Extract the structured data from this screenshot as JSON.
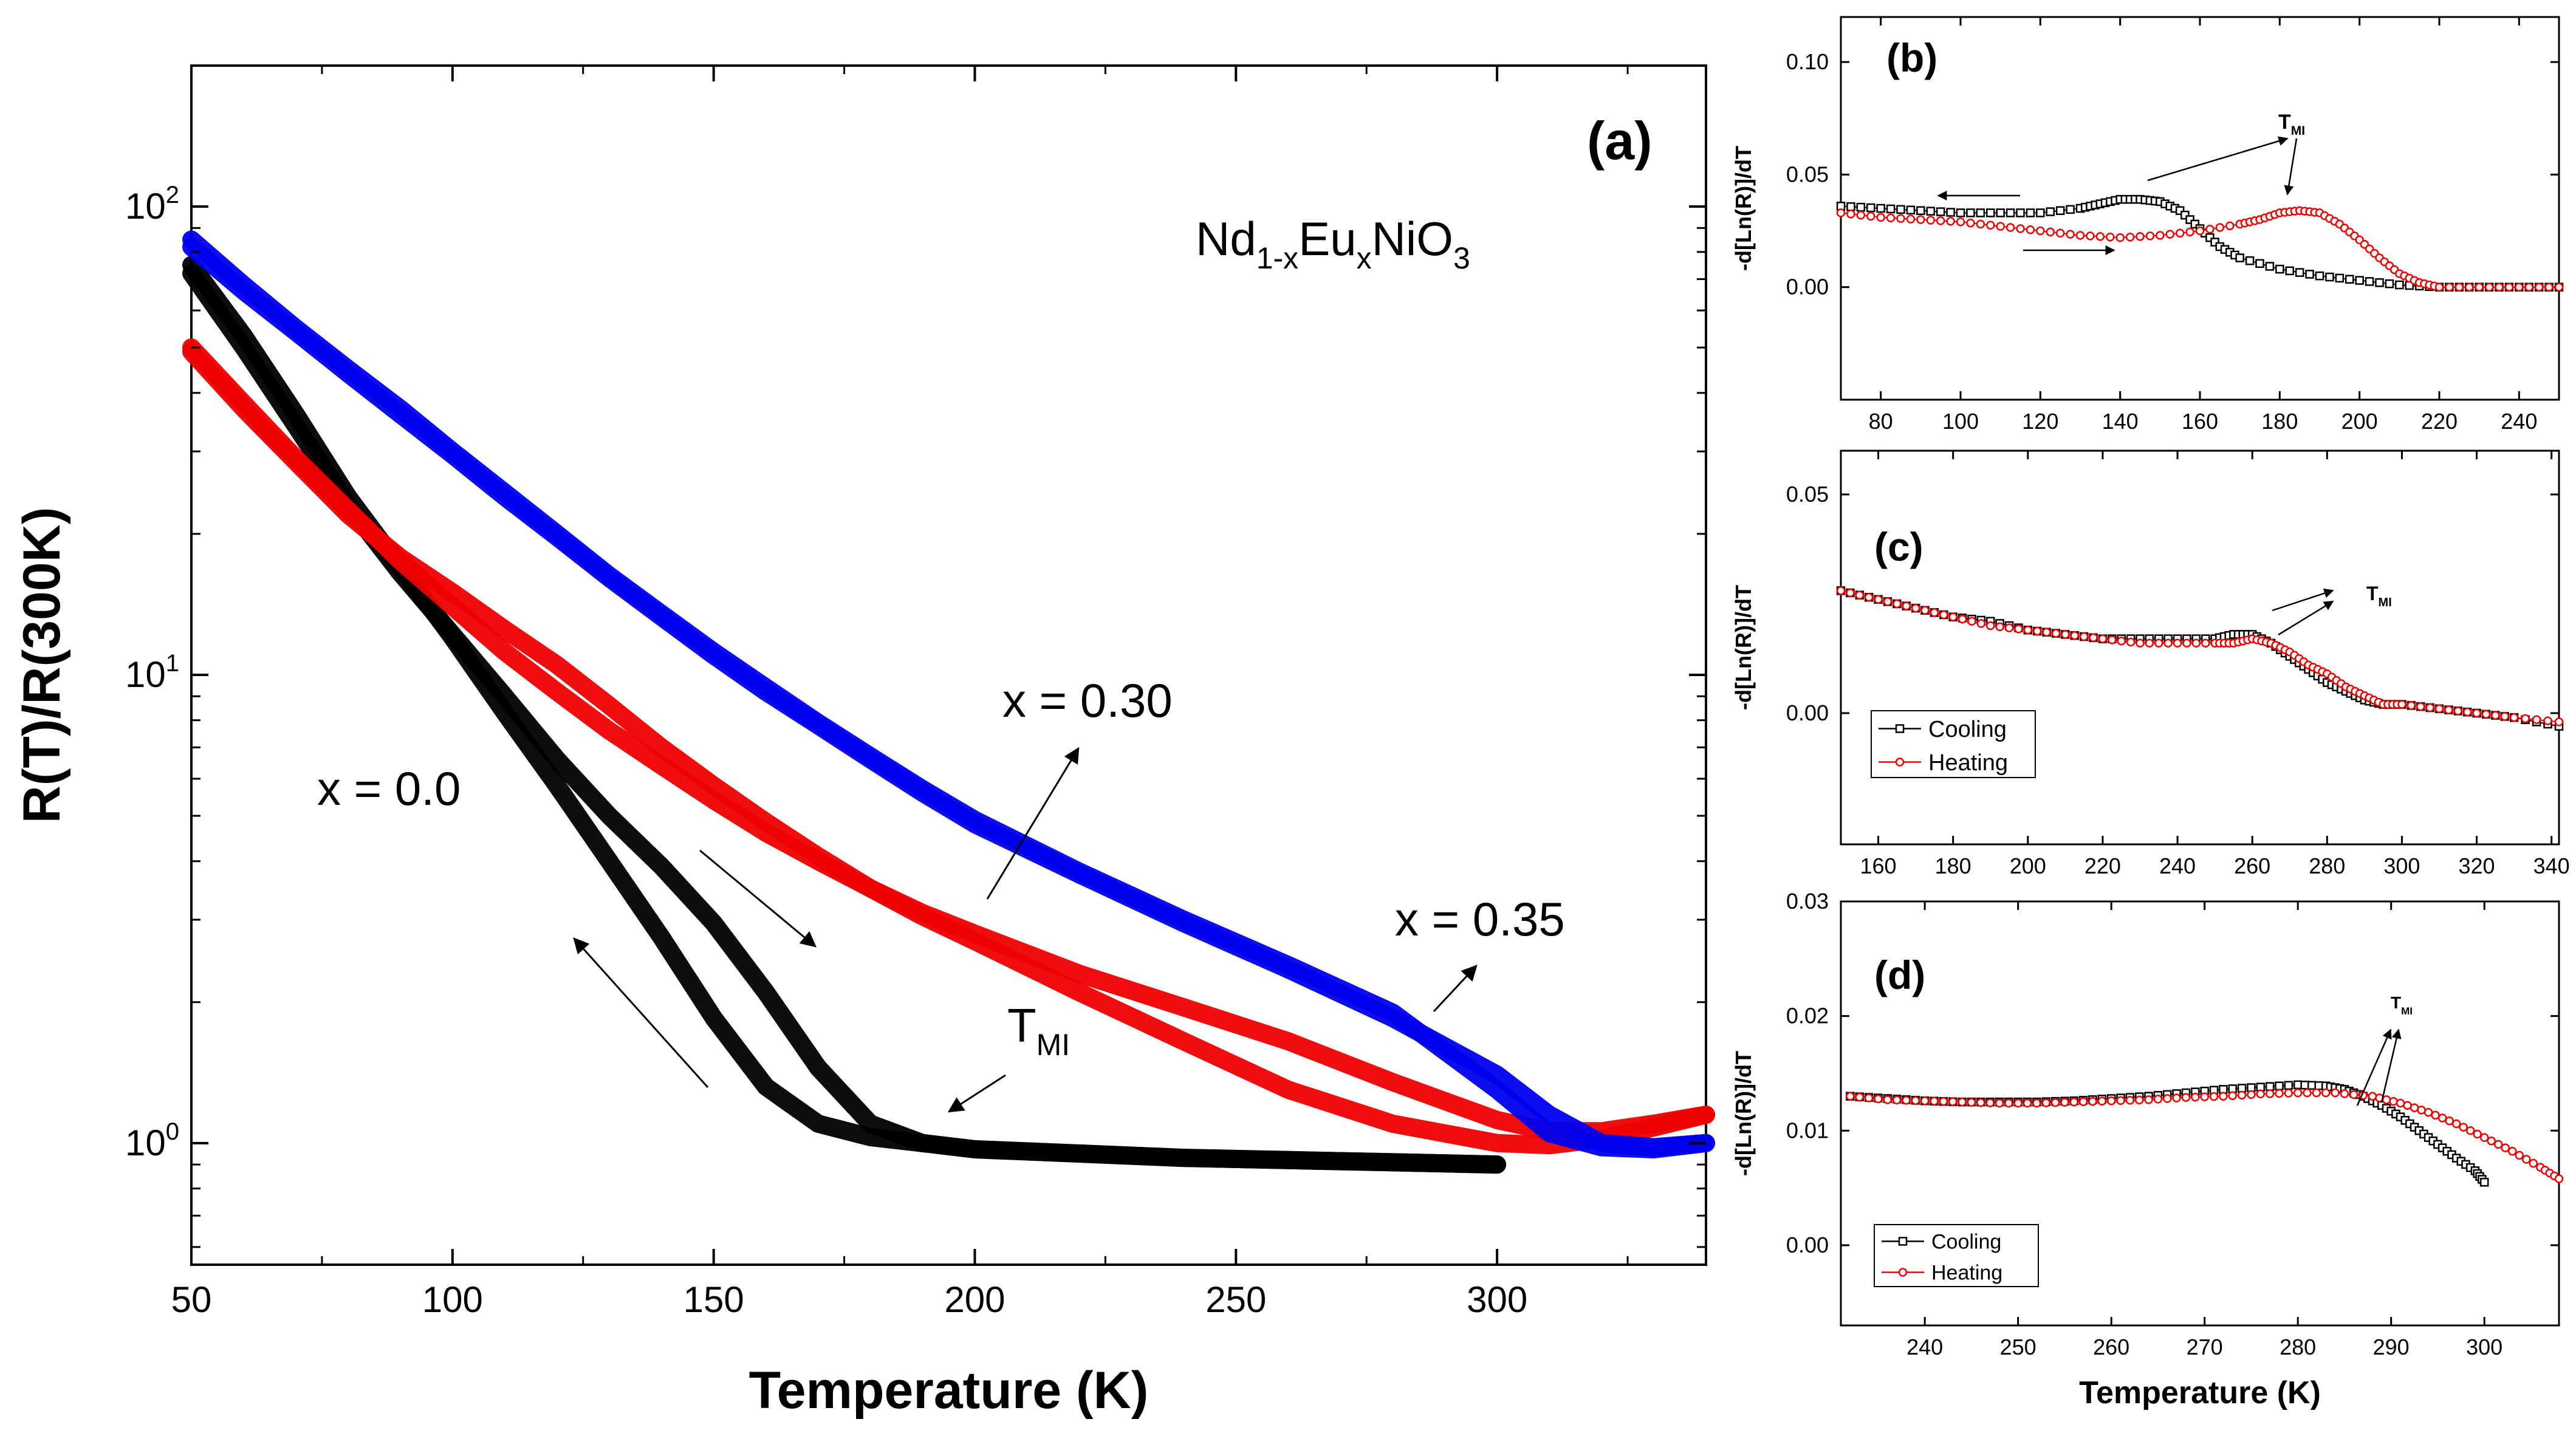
{
  "chart_data": [
    {
      "id": "a",
      "type": "line",
      "panel_label": "(a)",
      "title": "",
      "xlabel": "Temperature (K)",
      "ylabel": "R(T)/R(300K)",
      "y_scale": "log",
      "xlim": [
        50,
        340
      ],
      "ylim": [
        0.55,
        200
      ],
      "x_ticks": [
        50,
        100,
        150,
        200,
        250,
        300
      ],
      "y_ticks": [
        {
          "value": 1,
          "base": "10",
          "exp": "0"
        },
        {
          "value": 10,
          "base": "10",
          "exp": "1"
        },
        {
          "value": 100,
          "base": "10",
          "exp": "2"
        }
      ],
      "compound": {
        "parts": [
          [
            "Nd",
            ""
          ],
          [
            "1-x",
            "sub"
          ],
          [
            "Eu",
            ""
          ],
          [
            "x",
            "sub"
          ],
          [
            "NiO",
            ""
          ],
          [
            "3",
            "sub"
          ]
        ]
      },
      "annotations": {
        "x0": "x = 0.0",
        "x30": "x = 0.30",
        "x35": "x = 0.35",
        "tmi_main": "T",
        "tmi_sub": "MI"
      },
      "series": [
        {
          "name": "x = 0.0 cooling",
          "color": "#000000",
          "x": [
            50,
            60,
            70,
            80,
            90,
            100,
            110,
            120,
            130,
            140,
            150,
            160,
            170,
            180,
            190,
            200,
            220,
            240,
            260,
            280,
            300
          ],
          "y": [
            75,
            53,
            36,
            24,
            17,
            12,
            8.3,
            5.8,
            4.0,
            2.75,
            1.85,
            1.32,
            1.1,
            1.03,
            1.0,
            0.97,
            0.95,
            0.93,
            0.92,
            0.91,
            0.9
          ]
        },
        {
          "name": "x = 0.0 heating",
          "color": "#000000",
          "x": [
            50,
            60,
            70,
            80,
            90,
            100,
            110,
            120,
            130,
            140,
            150,
            160,
            170,
            180,
            190,
            200,
            220,
            240,
            260,
            280,
            300
          ],
          "y": [
            72,
            50,
            34,
            23,
            16.5,
            12.2,
            9.0,
            6.6,
            5.0,
            3.9,
            2.95,
            2.1,
            1.45,
            1.1,
            1.0,
            0.97,
            0.95,
            0.93,
            0.92,
            0.91,
            0.9
          ]
        },
        {
          "name": "x = 0.30 cooling",
          "color": "#ee0000",
          "x": [
            50,
            60,
            70,
            80,
            90,
            100,
            110,
            120,
            130,
            140,
            150,
            160,
            170,
            180,
            190,
            200,
            220,
            240,
            260,
            280,
            300,
            310,
            320,
            330,
            340
          ],
          "y": [
            50,
            38,
            29,
            22.5,
            17.5,
            14.0,
            11.2,
            9.2,
            7.6,
            6.4,
            5.4,
            4.6,
            4.0,
            3.5,
            3.1,
            2.8,
            2.3,
            1.95,
            1.65,
            1.35,
            1.12,
            1.06,
            1.06,
            1.1,
            1.15
          ]
        },
        {
          "name": "x = 0.30 heating",
          "color": "#ee0000",
          "x": [
            50,
            60,
            70,
            80,
            90,
            100,
            110,
            120,
            130,
            140,
            150,
            160,
            170,
            180,
            190,
            200,
            220,
            240,
            260,
            280,
            300,
            310,
            320,
            330,
            340
          ],
          "y": [
            49,
            37,
            28.5,
            22,
            17.8,
            15.0,
            12.5,
            10.5,
            8.6,
            7.0,
            5.8,
            4.85,
            4.1,
            3.5,
            3.05,
            2.7,
            2.1,
            1.65,
            1.3,
            1.1,
            1.0,
            0.99,
            1.02,
            1.08,
            1.15
          ]
        },
        {
          "name": "x = 0.35 cooling",
          "color": "#0000ee",
          "x": [
            50,
            60,
            70,
            80,
            90,
            100,
            110,
            120,
            130,
            140,
            150,
            160,
            170,
            180,
            190,
            200,
            220,
            240,
            260,
            280,
            300,
            310,
            320,
            330,
            340
          ],
          "y": [
            85,
            68,
            55,
            45,
            37,
            30,
            24.5,
            20,
            16.3,
            13.5,
            11.2,
            9.4,
            7.9,
            6.7,
            5.7,
            4.9,
            3.8,
            3.0,
            2.4,
            1.9,
            1.3,
            1.05,
            0.98,
            0.97,
            1.0
          ]
        },
        {
          "name": "x = 0.35 heating",
          "color": "#0000ee",
          "x": [
            50,
            60,
            70,
            80,
            90,
            100,
            110,
            120,
            130,
            140,
            150,
            160,
            170,
            180,
            190,
            200,
            220,
            240,
            260,
            280,
            300,
            310,
            320,
            330,
            340
          ],
          "y": [
            82,
            66,
            54,
            44,
            36,
            29.5,
            24,
            19.7,
            16.1,
            13.3,
            11.0,
            9.2,
            7.8,
            6.6,
            5.6,
            4.8,
            3.75,
            2.95,
            2.35,
            1.85,
            1.4,
            1.15,
            1.0,
            0.98,
            1.0
          ]
        }
      ]
    },
    {
      "id": "b",
      "type": "scatter",
      "panel_label": "(b)",
      "xlabel": "",
      "ylabel": "-d[Ln(R)]/dT",
      "xlim": [
        70,
        250
      ],
      "ylim": [
        -0.05,
        0.12
      ],
      "x_ticks": [
        80,
        100,
        120,
        140,
        160,
        180,
        200,
        220,
        240
      ],
      "y_ticks": [
        0.0,
        0.05,
        0.1
      ],
      "y_tick_labels": [
        "0.00",
        "0.05",
        "0.10"
      ],
      "annotation": {
        "main": "T",
        "sub": "MI"
      },
      "series": [
        {
          "name": "Cooling",
          "color": "#000000",
          "marker": "square",
          "x": [
            70,
            80,
            90,
            100,
            110,
            120,
            130,
            135,
            140,
            145,
            150,
            155,
            160,
            165,
            170,
            180,
            190,
            200,
            210,
            220,
            230,
            240,
            250
          ],
          "y": [
            0.036,
            0.035,
            0.034,
            0.033,
            0.033,
            0.033,
            0.035,
            0.037,
            0.039,
            0.039,
            0.038,
            0.034,
            0.026,
            0.018,
            0.013,
            0.008,
            0.005,
            0.003,
            0.001,
            0.0,
            0.0,
            0.0,
            0.0
          ]
        },
        {
          "name": "Heating",
          "color": "#ee0000",
          "marker": "circle",
          "x": [
            70,
            80,
            90,
            100,
            110,
            120,
            130,
            140,
            150,
            160,
            170,
            175,
            180,
            185,
            190,
            195,
            200,
            205,
            210,
            215,
            220,
            230,
            240,
            250
          ],
          "y": [
            0.033,
            0.031,
            0.03,
            0.029,
            0.027,
            0.025,
            0.023,
            0.022,
            0.023,
            0.025,
            0.028,
            0.03,
            0.033,
            0.034,
            0.033,
            0.028,
            0.021,
            0.013,
            0.006,
            0.002,
            0.0,
            0.0,
            0.0,
            0.0
          ]
        }
      ]
    },
    {
      "id": "c",
      "type": "scatter",
      "panel_label": "(c)",
      "xlabel": "",
      "ylabel": "-d[Ln(R)]/dT",
      "xlim": [
        150,
        342
      ],
      "ylim": [
        -0.03,
        0.06
      ],
      "x_ticks": [
        160,
        180,
        200,
        220,
        240,
        260,
        280,
        300,
        320,
        340
      ],
      "y_ticks": [
        0.0,
        0.05
      ],
      "y_tick_labels": [
        "0.00",
        "0.05"
      ],
      "legend": {
        "cooling": "Cooling",
        "heating": "Heating"
      },
      "annotation": {
        "main": "T",
        "sub": "MI"
      },
      "series": [
        {
          "name": "Cooling",
          "color": "#000000",
          "marker": "square",
          "x": [
            150,
            160,
            170,
            180,
            190,
            200,
            210,
            220,
            230,
            240,
            250,
            255,
            260,
            265,
            270,
            275,
            280,
            285,
            290,
            295,
            300,
            310,
            320,
            330,
            342
          ],
          "y": [
            0.028,
            0.026,
            0.024,
            0.022,
            0.021,
            0.019,
            0.018,
            0.017,
            0.017,
            0.017,
            0.017,
            0.018,
            0.018,
            0.016,
            0.013,
            0.01,
            0.007,
            0.005,
            0.003,
            0.002,
            0.002,
            0.001,
            0.0,
            -0.001,
            -0.003
          ]
        },
        {
          "name": "Heating",
          "color": "#ee0000",
          "marker": "circle",
          "x": [
            150,
            160,
            170,
            180,
            190,
            200,
            210,
            220,
            230,
            240,
            250,
            255,
            260,
            265,
            270,
            275,
            280,
            285,
            290,
            295,
            300,
            310,
            320,
            330,
            342
          ],
          "y": [
            0.028,
            0.026,
            0.024,
            0.022,
            0.02,
            0.019,
            0.018,
            0.017,
            0.016,
            0.016,
            0.016,
            0.016,
            0.017,
            0.016,
            0.014,
            0.011,
            0.009,
            0.006,
            0.004,
            0.002,
            0.002,
            0.001,
            0.0,
            -0.001,
            -0.002
          ]
        }
      ]
    },
    {
      "id": "d",
      "type": "scatter",
      "panel_label": "(d)",
      "xlabel": "Temperature (K)",
      "ylabel": "-d[Ln(R)]/dT",
      "xlim": [
        231,
        308
      ],
      "ylim": [
        -0.007,
        0.03
      ],
      "x_ticks": [
        240,
        250,
        260,
        270,
        280,
        290,
        300
      ],
      "y_ticks": [
        0.0,
        0.01,
        0.02,
        0.03
      ],
      "y_tick_labels": [
        "0.00",
        "0.01",
        "0.02",
        "0.03"
      ],
      "legend": {
        "cooling": "Cooling",
        "heating": "Heating"
      },
      "annotation": {
        "main": "T",
        "sub": "MI"
      },
      "series": [
        {
          "name": "Cooling",
          "color": "#000000",
          "marker": "square",
          "x": [
            232,
            236,
            240,
            244,
            248,
            252,
            256,
            260,
            264,
            268,
            272,
            276,
            280,
            283,
            285,
            287,
            289,
            291,
            293,
            295,
            297,
            299,
            300
          ],
          "y": [
            0.013,
            0.0128,
            0.0126,
            0.0125,
            0.0125,
            0.0125,
            0.0126,
            0.0128,
            0.013,
            0.0133,
            0.0136,
            0.0138,
            0.014,
            0.0139,
            0.0136,
            0.013,
            0.0122,
            0.0112,
            0.01,
            0.0088,
            0.0076,
            0.0065,
            0.0055
          ]
        },
        {
          "name": "Heating",
          "color": "#ee0000",
          "marker": "circle",
          "x": [
            232,
            236,
            240,
            244,
            248,
            252,
            256,
            260,
            264,
            268,
            272,
            276,
            280,
            284,
            288,
            291,
            294,
            297,
            300,
            303,
            306,
            308
          ],
          "y": [
            0.013,
            0.0127,
            0.0126,
            0.0125,
            0.0124,
            0.0124,
            0.0125,
            0.0126,
            0.0127,
            0.0129,
            0.013,
            0.0132,
            0.0133,
            0.0133,
            0.013,
            0.0124,
            0.0116,
            0.0106,
            0.0094,
            0.0082,
            0.0068,
            0.0058
          ]
        }
      ]
    }
  ]
}
